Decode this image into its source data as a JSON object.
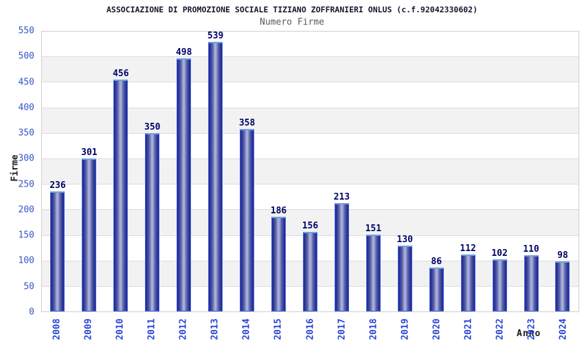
{
  "page": {
    "background": "#ffffff"
  },
  "chart_data": {
    "type": "bar",
    "title": "ASSOCIAZIONE DI PROMOZIONE SOCIALE TIZIANO ZOFFRANIERI ONLUS (c.f.92042330602)",
    "subtitle": "Numero Firme",
    "xlabel": "Anno",
    "ylabel": "Firme",
    "categories": [
      "2008",
      "2009",
      "2010",
      "2011",
      "2012",
      "2013",
      "2014",
      "2015",
      "2016",
      "2017",
      "2018",
      "2019",
      "2020",
      "2021",
      "2022",
      "2023",
      "2024"
    ],
    "values": [
      236,
      301,
      456,
      350,
      498,
      539,
      358,
      186,
      156,
      213,
      151,
      130,
      86,
      112,
      102,
      110,
      98
    ],
    "ylim": [
      0,
      550
    ],
    "ytick_step": 50,
    "grid": "horizontal-bands-alternating",
    "legend": "none",
    "value_labels": "above-bars",
    "colors": {
      "bar_edge": "#3a62e8",
      "bar_top_cap": "#6fa0e0",
      "bar_dark": "#23288c",
      "bar_light": "#a9b1dc",
      "value_label": "#000066",
      "tick_label": "#3355cc",
      "category_label": "#2a44d4",
      "title": "#16162e",
      "subtitle": "#595959",
      "axis_label": "#1a1a1a",
      "band_gray": "#f2f2f2",
      "gridline": "#dcdcdc",
      "plot_border": "#cfcfcf"
    }
  }
}
